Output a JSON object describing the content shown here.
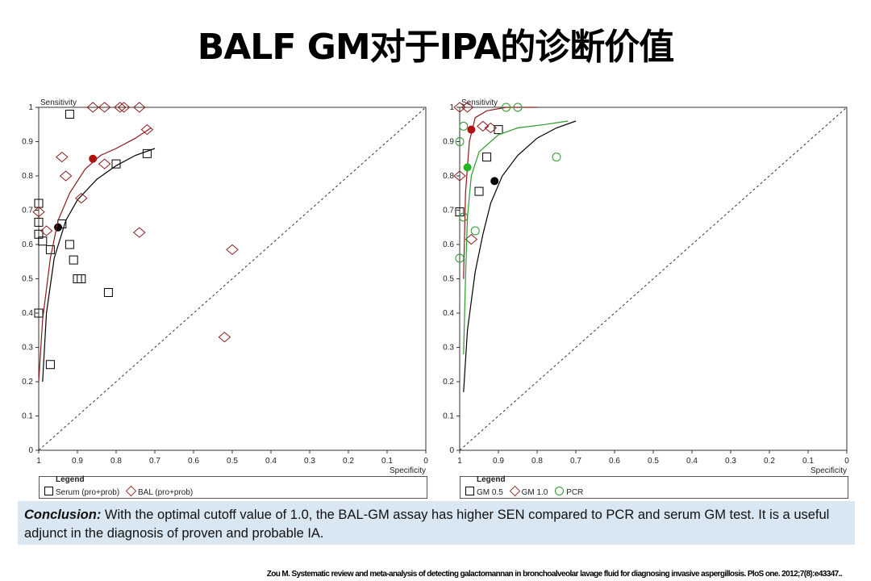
{
  "title": "BALF GM对于IPA的诊断价值",
  "chart_data": [
    {
      "type": "scatter",
      "xlabel": "Specificity",
      "ylabel": "Sensitivity",
      "xlim": [
        1,
        0
      ],
      "ylim": [
        0,
        1
      ],
      "x_ticks": [
        "1",
        "0.9",
        "0.8",
        "0.7",
        "0.6",
        "0.5",
        "0.4",
        "0.3",
        "0.2",
        "0.1",
        "0"
      ],
      "y_ticks": [
        "0",
        "0.1",
        "0.2",
        "0.3",
        "0.4",
        "0.5",
        "0.6",
        "0.7",
        "0.8",
        "0.9",
        "1"
      ],
      "legend_title": "Legend",
      "legend": [
        "Serum (pro+prob)",
        "BAL (pro+prob)"
      ],
      "series": [
        {
          "name": "Serum (pro+prob)",
          "marker": "square",
          "color": "#000000",
          "points": [
            [
              0.92,
              0.98
            ],
            [
              1.0,
              0.72
            ],
            [
              1.0,
              0.665
            ],
            [
              1.0,
              0.63
            ],
            [
              0.99,
              0.61
            ],
            [
              0.97,
              0.585
            ],
            [
              0.94,
              0.66
            ],
            [
              0.92,
              0.6
            ],
            [
              0.91,
              0.555
            ],
            [
              0.9,
              0.5
            ],
            [
              0.89,
              0.5
            ],
            [
              0.82,
              0.46
            ],
            [
              1.0,
              0.4
            ],
            [
              0.97,
              0.25
            ],
            [
              0.8,
              0.835
            ],
            [
              0.72,
              0.865
            ]
          ],
          "summary_point": [
            0.95,
            0.65
          ],
          "curve": [
            [
              0.99,
              0.2
            ],
            [
              0.98,
              0.4
            ],
            [
              0.96,
              0.56
            ],
            [
              0.93,
              0.67
            ],
            [
              0.9,
              0.73
            ],
            [
              0.85,
              0.79
            ],
            [
              0.8,
              0.83
            ],
            [
              0.75,
              0.86
            ],
            [
              0.7,
              0.88
            ]
          ]
        },
        {
          "name": "BAL (pro+prob)",
          "marker": "diamond",
          "color": "#8b1a1a",
          "points": [
            [
              0.86,
              1.0
            ],
            [
              0.83,
              1.0
            ],
            [
              0.79,
              1.0
            ],
            [
              0.78,
              1.0
            ],
            [
              0.74,
              1.0
            ],
            [
              0.72,
              0.935
            ],
            [
              0.94,
              0.855
            ],
            [
              0.93,
              0.8
            ],
            [
              0.89,
              0.735
            ],
            [
              0.83,
              0.835
            ],
            [
              0.74,
              0.635
            ],
            [
              0.5,
              0.585
            ],
            [
              0.52,
              0.33
            ],
            [
              1.0,
              0.695
            ],
            [
              0.98,
              0.64
            ]
          ],
          "summary_point": [
            0.86,
            0.85
          ],
          "curve": [
            [
              1.0,
              0.2
            ],
            [
              0.99,
              0.38
            ],
            [
              0.97,
              0.56
            ],
            [
              0.95,
              0.67
            ],
            [
              0.92,
              0.75
            ],
            [
              0.88,
              0.82
            ],
            [
              0.84,
              0.86
            ],
            [
              0.8,
              0.88
            ],
            [
              0.75,
              0.91
            ],
            [
              0.71,
              0.94
            ]
          ]
        }
      ]
    },
    {
      "type": "scatter",
      "xlabel": "Specificity",
      "ylabel": "Sensitivity",
      "xlim": [
        1,
        0
      ],
      "ylim": [
        0,
        1
      ],
      "x_ticks": [
        "1",
        "0.9",
        "0.8",
        "0.7",
        "0.6",
        "0.5",
        "0.4",
        "0.3",
        "0.2",
        "0.1",
        "0"
      ],
      "y_ticks": [
        "0",
        "0.1",
        "0.2",
        "0.3",
        "0.4",
        "0.5",
        "0.6",
        "0.7",
        "0.8",
        "0.9",
        "1"
      ],
      "legend_title": "Legend",
      "legend": [
        "GM 0.5",
        "GM 1.0",
        "PCR"
      ],
      "series": [
        {
          "name": "GM 0.5",
          "marker": "square",
          "color": "#000000",
          "points": [
            [
              1.0,
              0.695
            ],
            [
              0.93,
              0.855
            ],
            [
              0.95,
              0.755
            ],
            [
              0.9,
              0.935
            ]
          ],
          "summary_point": [
            0.91,
            0.785
          ],
          "curve": [
            [
              0.99,
              0.17
            ],
            [
              0.98,
              0.35
            ],
            [
              0.96,
              0.52
            ],
            [
              0.94,
              0.63
            ],
            [
              0.92,
              0.72
            ],
            [
              0.89,
              0.8
            ],
            [
              0.85,
              0.86
            ],
            [
              0.8,
              0.91
            ],
            [
              0.75,
              0.94
            ],
            [
              0.7,
              0.96
            ]
          ]
        },
        {
          "name": "GM 1.0",
          "marker": "diamond",
          "color": "#8b1a1a",
          "points": [
            [
              1.0,
              1.0
            ],
            [
              0.98,
              1.0
            ],
            [
              0.92,
              0.94
            ],
            [
              0.94,
              0.945
            ],
            [
              1.0,
              0.8
            ],
            [
              0.97,
              0.615
            ]
          ],
          "summary_point": [
            0.97,
            0.935
          ],
          "curve": [
            [
              0.99,
              0.5
            ],
            [
              0.985,
              0.75
            ],
            [
              0.975,
              0.9
            ],
            [
              0.96,
              0.97
            ],
            [
              0.93,
              0.99
            ],
            [
              0.88,
              1.0
            ],
            [
              0.8,
              1.0
            ]
          ]
        },
        {
          "name": "PCR",
          "marker": "circle",
          "color": "#2a9a2a",
          "points": [
            [
              0.88,
              1.0
            ],
            [
              0.85,
              1.0
            ],
            [
              0.99,
              0.945
            ],
            [
              1.0,
              0.9
            ],
            [
              0.99,
              0.68
            ],
            [
              1.0,
              0.56
            ],
            [
              0.96,
              0.64
            ],
            [
              0.75,
              0.855
            ]
          ],
          "summary_point": [
            0.98,
            0.825
          ],
          "curve": [
            [
              0.99,
              0.28
            ],
            [
              0.985,
              0.5
            ],
            [
              0.98,
              0.68
            ],
            [
              0.97,
              0.8
            ],
            [
              0.95,
              0.87
            ],
            [
              0.9,
              0.92
            ],
            [
              0.85,
              0.94
            ],
            [
              0.78,
              0.95
            ],
            [
              0.72,
              0.96
            ]
          ]
        }
      ]
    }
  ],
  "conclusion": {
    "label": "Conclusion:",
    "text": " With the optimal cutoff value of 1.0, the BAL-GM assay has higher SEN compared to PCR and serum GM test. It is a useful adjunct in the diagnosis of proven and probable IA."
  },
  "citation": "Zou M. Systematic review and meta-analysis of detecting galactomannan in bronchoalveolar lavage fluid for diagnosing invasive aspergillosis. PloS one. 2012;7(8):e43347.."
}
